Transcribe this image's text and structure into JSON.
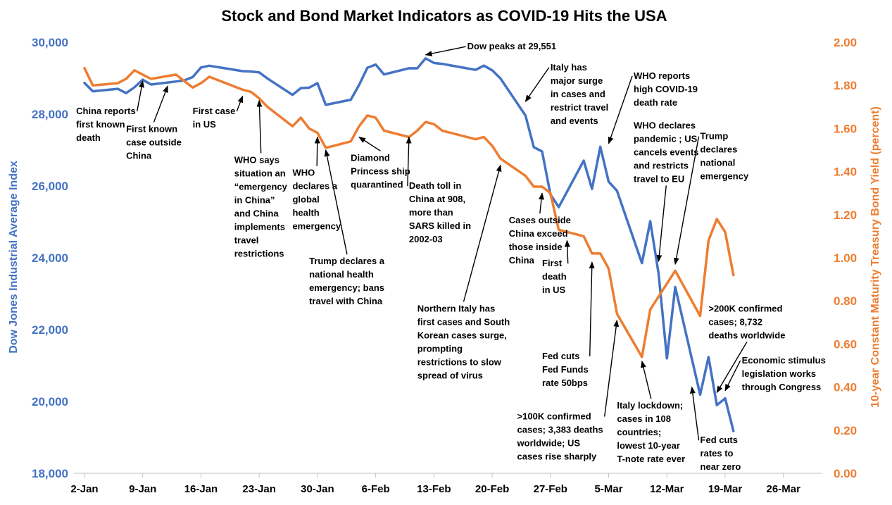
{
  "chart_data": {
    "type": "line",
    "title": "Stock and Bond Market Indicators as COVID-19 Hits the USA",
    "ylabel_left": "Dow Jones Industrial Average Index",
    "ylabel_right": "10-year Constant Maturity Treasury Bond Yield (percent)",
    "xlim": [
      "2020-01-02",
      "2020-03-30"
    ],
    "ylim_left": [
      18000,
      30000
    ],
    "ylim_right": [
      0,
      2
    ],
    "x_ticks": [
      {
        "date": "2020-01-02",
        "label": "2-Jan"
      },
      {
        "date": "2020-01-09",
        "label": "9-Jan"
      },
      {
        "date": "2020-01-16",
        "label": "16-Jan"
      },
      {
        "date": "2020-01-23",
        "label": "23-Jan"
      },
      {
        "date": "2020-01-30",
        "label": "30-Jan"
      },
      {
        "date": "2020-02-06",
        "label": "6-Feb"
      },
      {
        "date": "2020-02-13",
        "label": "13-Feb"
      },
      {
        "date": "2020-02-20",
        "label": "20-Feb"
      },
      {
        "date": "2020-02-27",
        "label": "27-Feb"
      },
      {
        "date": "2020-03-05",
        "label": "5-Mar"
      },
      {
        "date": "2020-03-12",
        "label": "12-Mar"
      },
      {
        "date": "2020-03-19",
        "label": "19-Mar"
      },
      {
        "date": "2020-03-26",
        "label": "26-Mar"
      }
    ],
    "y_ticks_left": [
      {
        "value": 18000,
        "label": "18,000"
      },
      {
        "value": 20000,
        "label": "20,000"
      },
      {
        "value": 22000,
        "label": "22,000"
      },
      {
        "value": 24000,
        "label": "24,000"
      },
      {
        "value": 26000,
        "label": "26,000"
      },
      {
        "value": 28000,
        "label": "28,000"
      },
      {
        "value": 30000,
        "label": "30,000"
      }
    ],
    "y_ticks_right": [
      {
        "value": 0,
        "label": "0.00"
      },
      {
        "value": 0.2,
        "label": "0.20"
      },
      {
        "value": 0.4,
        "label": "0.40"
      },
      {
        "value": 0.6,
        "label": "0.60"
      },
      {
        "value": 0.8,
        "label": "0.80"
      },
      {
        "value": 1.0,
        "label": "1.00"
      },
      {
        "value": 1.2,
        "label": "1.20"
      },
      {
        "value": 1.4,
        "label": "1.40"
      },
      {
        "value": 1.6,
        "label": "1.60"
      },
      {
        "value": 1.8,
        "label": "1.80"
      },
      {
        "value": 2.0,
        "label": "2.00"
      }
    ],
    "grid": false,
    "series": [
      {
        "axis": "left",
        "color": "#4472C4",
        "x": [
          "2020-01-02",
          "2020-01-03",
          "2020-01-06",
          "2020-01-07",
          "2020-01-08",
          "2020-01-09",
          "2020-01-10",
          "2020-01-13",
          "2020-01-14",
          "2020-01-15",
          "2020-01-16",
          "2020-01-17",
          "2020-01-21",
          "2020-01-22",
          "2020-01-23",
          "2020-01-24",
          "2020-01-27",
          "2020-01-28",
          "2020-01-29",
          "2020-01-30",
          "2020-01-31",
          "2020-02-03",
          "2020-02-04",
          "2020-02-05",
          "2020-02-06",
          "2020-02-07",
          "2020-02-10",
          "2020-02-11",
          "2020-02-12",
          "2020-02-13",
          "2020-02-14",
          "2020-02-18",
          "2020-02-19",
          "2020-02-20",
          "2020-02-21",
          "2020-02-24",
          "2020-02-25",
          "2020-02-26",
          "2020-02-27",
          "2020-02-28",
          "2020-03-02",
          "2020-03-03",
          "2020-03-04",
          "2020-03-05",
          "2020-03-06",
          "2020-03-09",
          "2020-03-10",
          "2020-03-11",
          "2020-03-12",
          "2020-03-13",
          "2020-03-16",
          "2020-03-17",
          "2020-03-18",
          "2020-03-19",
          "2020-03-20"
        ],
        "values": [
          28869,
          28635,
          28704,
          28584,
          28745,
          28957,
          28824,
          28908,
          28940,
          29030,
          29298,
          29348,
          29197,
          29187,
          29161,
          28990,
          28536,
          28723,
          28735,
          28860,
          28256,
          28400,
          28808,
          29291,
          29380,
          29103,
          29277,
          29275,
          29551,
          29424,
          29398,
          29232,
          29349,
          29220,
          28992,
          27961,
          27081,
          26958,
          25767,
          25409,
          26703,
          25917,
          27091,
          26121,
          25865,
          23851,
          25018,
          23553,
          21200,
          23186,
          20189,
          21237,
          19899,
          20087,
          19174
        ]
      },
      {
        "axis": "right",
        "color": "#ED7D31",
        "x": [
          "2020-01-02",
          "2020-01-03",
          "2020-01-06",
          "2020-01-07",
          "2020-01-08",
          "2020-01-09",
          "2020-01-10",
          "2020-01-13",
          "2020-01-14",
          "2020-01-15",
          "2020-01-16",
          "2020-01-17",
          "2020-01-21",
          "2020-01-22",
          "2020-01-23",
          "2020-01-24",
          "2020-01-27",
          "2020-01-28",
          "2020-01-29",
          "2020-01-30",
          "2020-01-31",
          "2020-02-03",
          "2020-02-04",
          "2020-02-05",
          "2020-02-06",
          "2020-02-07",
          "2020-02-10",
          "2020-02-11",
          "2020-02-12",
          "2020-02-13",
          "2020-02-14",
          "2020-02-18",
          "2020-02-19",
          "2020-02-20",
          "2020-02-21",
          "2020-02-24",
          "2020-02-25",
          "2020-02-26",
          "2020-02-27",
          "2020-02-28",
          "2020-03-02",
          "2020-03-03",
          "2020-03-04",
          "2020-03-05",
          "2020-03-06",
          "2020-03-09",
          "2020-03-10",
          "2020-03-11",
          "2020-03-12",
          "2020-03-13",
          "2020-03-16",
          "2020-03-17",
          "2020-03-18",
          "2020-03-19",
          "2020-03-20"
        ],
        "values": [
          1.88,
          1.8,
          1.81,
          1.83,
          1.87,
          1.85,
          1.83,
          1.85,
          1.82,
          1.79,
          1.81,
          1.84,
          1.78,
          1.77,
          1.74,
          1.7,
          1.61,
          1.65,
          1.6,
          1.58,
          1.51,
          1.54,
          1.61,
          1.66,
          1.65,
          1.59,
          1.56,
          1.59,
          1.63,
          1.62,
          1.59,
          1.55,
          1.56,
          1.52,
          1.46,
          1.38,
          1.33,
          1.33,
          1.3,
          1.13,
          1.1,
          1.02,
          1.02,
          0.95,
          0.74,
          0.54,
          0.76,
          0.82,
          0.88,
          0.94,
          0.73,
          1.08,
          1.18,
          1.12,
          0.92
        ]
      }
    ],
    "annotations": [
      {
        "text": [
          "China reports",
          "first known",
          "death"
        ],
        "x_text": "2020-01-01",
        "y_text": 28000,
        "tip_x": "2020-01-09",
        "tip_y": 28920
      },
      {
        "text": [
          "First known",
          "case outside",
          "China"
        ],
        "x_text": "2020-01-07",
        "y_text": 27500,
        "tip_x": "2020-01-12",
        "tip_y": 28780
      },
      {
        "text": [
          "First case",
          "in US"
        ],
        "x_text": "2020-01-15",
        "y_text": 28000,
        "tip_x": "2020-01-21",
        "tip_y": 1.75
      },
      {
        "text": [
          "WHO says",
          "situation an",
          "“emergency",
          "in China”",
          "and China",
          "implements",
          "travel",
          "restrictions"
        ],
        "x_text": "2020-01-20",
        "y_text": 1.44,
        "tip_x": "2020-01-23",
        "tip_y": 1.73
      },
      {
        "text": [
          "WHO",
          "declares a",
          "global",
          "health",
          "emergency"
        ],
        "x_text": "2020-01-27",
        "y_text": 1.38,
        "tip_x": "2020-01-30",
        "tip_y": 1.56
      },
      {
        "text": [
          "Trump declares a",
          "national health",
          "emergency; bans",
          "travel with China"
        ],
        "x_text": "2020-01-29",
        "y_text": 0.97,
        "tip_x": "2020-01-31",
        "tip_y": 1.5
      },
      {
        "text": [
          "Diamond",
          "Princess ship",
          "quarantined"
        ],
        "x_text": "2020-02-03",
        "y_text": 1.45,
        "tip_x": "2020-02-04",
        "tip_y": 1.56
      },
      {
        "text": [
          "Dow peaks at 29,551"
        ],
        "x_text": "2020-02-17",
        "y_text": 29800,
        "tip_x": "2020-02-12",
        "tip_y": 29650
      },
      {
        "text": [
          "Death toll in",
          "China at 908,",
          "more than",
          "SARS killed in",
          "2002-03"
        ],
        "x_text": "2020-02-10",
        "y_text": 1.32,
        "tip_x": "2020-02-10",
        "tip_y": 1.56
      },
      {
        "text": [
          "Northern Italy has",
          "first cases and South",
          "Korean cases surge,",
          "prompting",
          "restrictions to slow",
          "spread of virus"
        ],
        "x_text": "2020-02-11",
        "y_text": 0.75,
        "tip_x": "2020-02-21",
        "tip_y": 1.43
      },
      {
        "text": [
          "Italy has",
          "major surge",
          "in cases and",
          "restrict travel",
          "and events"
        ],
        "x_text": "2020-02-27",
        "y_text": 1.87,
        "tip_x": "2020-02-24",
        "tip_y": 28350
      },
      {
        "text": [
          "Cases outside",
          "China exceed",
          "those inside",
          "China"
        ],
        "x_text": "2020-02-22",
        "y_text": 1.16,
        "tip_x": "2020-02-26",
        "tip_y": 1.3
      },
      {
        "text": [
          "First",
          "death",
          "in US"
        ],
        "x_text": "2020-02-26",
        "y_text": 0.96,
        "tip_x": "2020-02-29",
        "tip_y": 1.08
      },
      {
        "text": [
          "Fed cuts",
          "Fed Funds",
          "rate 50bps"
        ],
        "x_text": "2020-02-26",
        "y_text": 0.53,
        "tip_x": "2020-03-03",
        "tip_y": 0.98
      },
      {
        "text": [
          ">100K confirmed",
          "cases; 3,383 deaths",
          "worldwide; US",
          "cases rise sharply"
        ],
        "x_text": "2020-02-23",
        "y_text": 0.25,
        "tip_x": "2020-03-06",
        "tip_y": 0.71
      },
      {
        "text": [
          "WHO reports",
          "high COVID-19",
          "death rate"
        ],
        "x_text": "2020-03-08",
        "y_text": 1.83,
        "tip_x": "2020-03-05",
        "tip_y": 1.53
      },
      {
        "text": [
          "WHO declares",
          "pandemic ; US",
          "cancels events",
          "and restricts",
          "travel to EU"
        ],
        "x_text": "2020-03-08",
        "y_text": 1.6,
        "tip_x": "2020-03-11",
        "tip_y": 23900
      },
      {
        "text": [
          "Trump",
          "declares",
          "national",
          "emergency"
        ],
        "x_text": "2020-03-16",
        "y_text": 1.55,
        "tip_x": "2020-03-13",
        "tip_y": 0.97
      },
      {
        "text": [
          ">200K confirmed",
          "cases; 8,732",
          "deaths worldwide"
        ],
        "x_text": "2020-03-17",
        "y_text": 0.75,
        "tip_x": "2020-03-18",
        "tip_y": 20250
      },
      {
        "text": [
          "Economic stimulus",
          "legislation works",
          "through Congress"
        ],
        "x_text": "2020-03-21",
        "y_text": 0.51,
        "tip_x": "2020-03-19",
        "tip_y": 20300
      },
      {
        "text": [
          "Italy lockdown;",
          "cases in 108",
          "countries;",
          "lowest 10-year",
          "T-note rate ever"
        ],
        "x_text": "2020-03-06",
        "y_text": 0.3,
        "tip_x": "2020-03-09",
        "tip_y": 0.52
      },
      {
        "text": [
          "Fed cuts",
          "rates to",
          "near zero"
        ],
        "x_text": "2020-03-16",
        "y_text": 0.14,
        "tip_x": "2020-03-15",
        "tip_y": 0.4
      }
    ]
  }
}
